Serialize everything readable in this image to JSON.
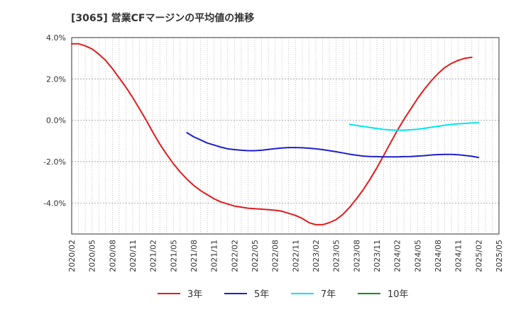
{
  "chart_data": {
    "type": "line",
    "title": "[3065]  営業CFマージンの平均値の推移",
    "xlabel": "",
    "ylabel": "",
    "ylim": [
      -5.5,
      4.0
    ],
    "y_ticks": [
      4.0,
      2.0,
      0.0,
      -2.0,
      -4.0
    ],
    "y_tick_labels": [
      "4.0%",
      "2.0%",
      "0.0%",
      "-2.0%",
      "-4.0%"
    ],
    "x_ticks": [
      "2020/02",
      "2020/05",
      "2020/08",
      "2020/11",
      "2021/02",
      "2021/05",
      "2021/08",
      "2021/11",
      "2022/02",
      "2022/05",
      "2022/08",
      "2022/11",
      "2023/02",
      "2023/05",
      "2023/08",
      "2023/11",
      "2024/02",
      "2024/05",
      "2024/08",
      "2024/11",
      "2025/02",
      "2025/05"
    ],
    "grid": true,
    "legend_position": "bottom",
    "series": [
      {
        "name": "3年",
        "color": "#e31a1c",
        "points": [
          [
            "2020/02",
            3.7
          ],
          [
            "2020/03",
            3.7
          ],
          [
            "2020/04",
            3.6
          ],
          [
            "2020/05",
            3.45
          ],
          [
            "2020/06",
            3.2
          ],
          [
            "2020/07",
            2.9
          ],
          [
            "2020/08",
            2.5
          ],
          [
            "2020/09",
            2.05
          ],
          [
            "2020/10",
            1.6
          ],
          [
            "2020/11",
            1.1
          ],
          [
            "2020/12",
            0.55
          ],
          [
            "2021/01",
            0.0
          ],
          [
            "2021/02",
            -0.6
          ],
          [
            "2021/03",
            -1.15
          ],
          [
            "2021/04",
            -1.65
          ],
          [
            "2021/05",
            -2.1
          ],
          [
            "2021/06",
            -2.5
          ],
          [
            "2021/07",
            -2.85
          ],
          [
            "2021/08",
            -3.15
          ],
          [
            "2021/09",
            -3.4
          ],
          [
            "2021/10",
            -3.6
          ],
          [
            "2021/11",
            -3.8
          ],
          [
            "2021/12",
            -3.95
          ],
          [
            "2022/01",
            -4.05
          ],
          [
            "2022/02",
            -4.15
          ],
          [
            "2022/04",
            -4.25
          ],
          [
            "2022/06",
            -4.3
          ],
          [
            "2022/08",
            -4.35
          ],
          [
            "2022/09",
            -4.4
          ],
          [
            "2022/10",
            -4.5
          ],
          [
            "2022/11",
            -4.6
          ],
          [
            "2022/12",
            -4.75
          ],
          [
            "2023/01",
            -4.95
          ],
          [
            "2023/02",
            -5.05
          ],
          [
            "2023/03",
            -5.05
          ],
          [
            "2023/04",
            -4.95
          ],
          [
            "2023/05",
            -4.8
          ],
          [
            "2023/06",
            -4.55
          ],
          [
            "2023/07",
            -4.2
          ],
          [
            "2023/08",
            -3.8
          ],
          [
            "2023/09",
            -3.35
          ],
          [
            "2023/10",
            -2.85
          ],
          [
            "2023/11",
            -2.3
          ],
          [
            "2023/12",
            -1.7
          ],
          [
            "2024/01",
            -1.1
          ],
          [
            "2024/02",
            -0.5
          ],
          [
            "2024/03",
            0.05
          ],
          [
            "2024/04",
            0.55
          ],
          [
            "2024/05",
            1.05
          ],
          [
            "2024/06",
            1.5
          ],
          [
            "2024/07",
            1.9
          ],
          [
            "2024/08",
            2.25
          ],
          [
            "2024/09",
            2.55
          ],
          [
            "2024/10",
            2.75
          ],
          [
            "2024/11",
            2.9
          ],
          [
            "2024/12",
            3.0
          ],
          [
            "2025/01",
            3.05
          ]
        ]
      },
      {
        "name": "5年",
        "color": "#1f1fcc",
        "points": [
          [
            "2021/07",
            -0.6
          ],
          [
            "2021/08",
            -0.8
          ],
          [
            "2021/09",
            -0.95
          ],
          [
            "2021/10",
            -1.1
          ],
          [
            "2021/11",
            -1.2
          ],
          [
            "2021/12",
            -1.3
          ],
          [
            "2022/01",
            -1.38
          ],
          [
            "2022/02",
            -1.42
          ],
          [
            "2022/03",
            -1.45
          ],
          [
            "2022/04",
            -1.47
          ],
          [
            "2022/05",
            -1.47
          ],
          [
            "2022/06",
            -1.45
          ],
          [
            "2022/07",
            -1.41
          ],
          [
            "2022/08",
            -1.37
          ],
          [
            "2022/09",
            -1.34
          ],
          [
            "2022/10",
            -1.32
          ],
          [
            "2022/11",
            -1.32
          ],
          [
            "2022/12",
            -1.33
          ],
          [
            "2023/01",
            -1.35
          ],
          [
            "2023/02",
            -1.38
          ],
          [
            "2023/03",
            -1.42
          ],
          [
            "2023/04",
            -1.47
          ],
          [
            "2023/05",
            -1.52
          ],
          [
            "2023/06",
            -1.58
          ],
          [
            "2023/07",
            -1.64
          ],
          [
            "2023/08",
            -1.69
          ],
          [
            "2023/09",
            -1.73
          ],
          [
            "2023/10",
            -1.75
          ],
          [
            "2023/11",
            -1.76
          ],
          [
            "2023/12",
            -1.77
          ],
          [
            "2024/01",
            -1.77
          ],
          [
            "2024/02",
            -1.77
          ],
          [
            "2024/03",
            -1.76
          ],
          [
            "2024/04",
            -1.75
          ],
          [
            "2024/05",
            -1.73
          ],
          [
            "2024/06",
            -1.71
          ],
          [
            "2024/07",
            -1.68
          ],
          [
            "2024/08",
            -1.66
          ],
          [
            "2024/09",
            -1.65
          ],
          [
            "2024/10",
            -1.65
          ],
          [
            "2024/11",
            -1.67
          ],
          [
            "2024/12",
            -1.7
          ],
          [
            "2025/01",
            -1.74
          ],
          [
            "2025/02",
            -1.8
          ]
        ]
      },
      {
        "name": "7年",
        "color": "#00e5ee",
        "points": [
          [
            "2023/07",
            -0.2
          ],
          [
            "2023/08",
            -0.25
          ],
          [
            "2023/09",
            -0.3
          ],
          [
            "2023/10",
            -0.35
          ],
          [
            "2023/11",
            -0.4
          ],
          [
            "2023/12",
            -0.44
          ],
          [
            "2024/01",
            -0.47
          ],
          [
            "2024/02",
            -0.48
          ],
          [
            "2024/03",
            -0.48
          ],
          [
            "2024/04",
            -0.46
          ],
          [
            "2024/05",
            -0.43
          ],
          [
            "2024/06",
            -0.39
          ],
          [
            "2024/07",
            -0.34
          ],
          [
            "2024/08",
            -0.29
          ],
          [
            "2024/09",
            -0.24
          ],
          [
            "2024/10",
            -0.2
          ],
          [
            "2024/11",
            -0.17
          ],
          [
            "2024/12",
            -0.15
          ],
          [
            "2025/01",
            -0.13
          ],
          [
            "2025/02",
            -0.12
          ]
        ]
      },
      {
        "name": "10年",
        "color": "#1a8c1a",
        "points": []
      }
    ]
  }
}
